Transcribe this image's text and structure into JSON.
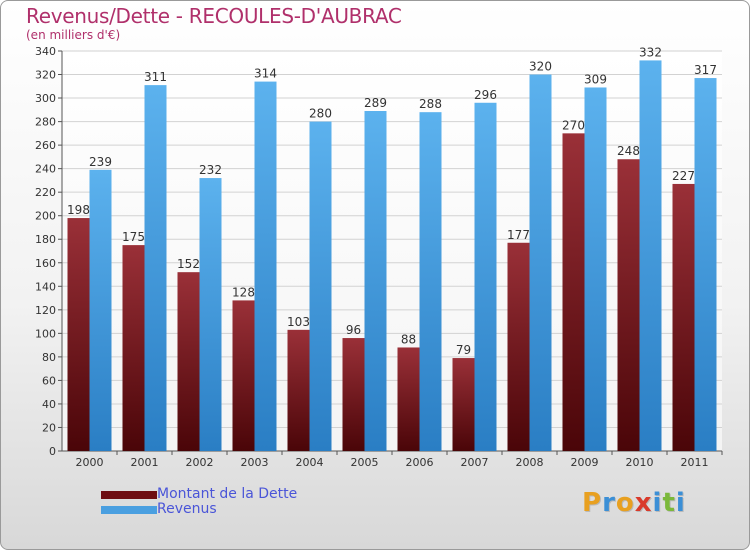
{
  "title": "Revenus/Dette - RECOULES-D'AUBRAC",
  "subtitle": "(en milliers d'€)",
  "colors": {
    "dette": "#7a1a1f",
    "revenus": "#4a9fe0",
    "title": "#b0306b",
    "legend_text": "#4a55d8"
  },
  "legend": [
    {
      "label": "Montant de la Dette",
      "color": "#6e0d12"
    },
    {
      "label": "Revenus",
      "color": "#4a9fe0"
    }
  ],
  "logo": {
    "text": "Proxiti",
    "letters": [
      "P",
      "r",
      "o",
      "x",
      "i",
      "t",
      "i"
    ],
    "letter_colors": [
      "#e8a020",
      "#3b8fd6",
      "#e8a020",
      "#d93a2b",
      "#3b8fd6",
      "#7bb83a",
      "#3b8fd6"
    ]
  },
  "chart_data": {
    "type": "bar",
    "categories": [
      "2000",
      "2001",
      "2002",
      "2003",
      "2004",
      "2005",
      "2006",
      "2007",
      "2008",
      "2009",
      "2010",
      "2011"
    ],
    "series": [
      {
        "name": "Montant de la Dette",
        "values": [
          198,
          175,
          152,
          128,
          103,
          96,
          88,
          79,
          177,
          270,
          248,
          227
        ]
      },
      {
        "name": "Revenus",
        "values": [
          239,
          311,
          232,
          314,
          280,
          289,
          288,
          296,
          320,
          309,
          332,
          317
        ]
      }
    ],
    "ylim": [
      0,
      340
    ],
    "yticks": [
      0,
      20,
      40,
      60,
      80,
      100,
      120,
      140,
      160,
      180,
      200,
      220,
      240,
      260,
      280,
      300,
      320,
      340
    ],
    "grid": true,
    "legend_position": "bottom-left"
  }
}
